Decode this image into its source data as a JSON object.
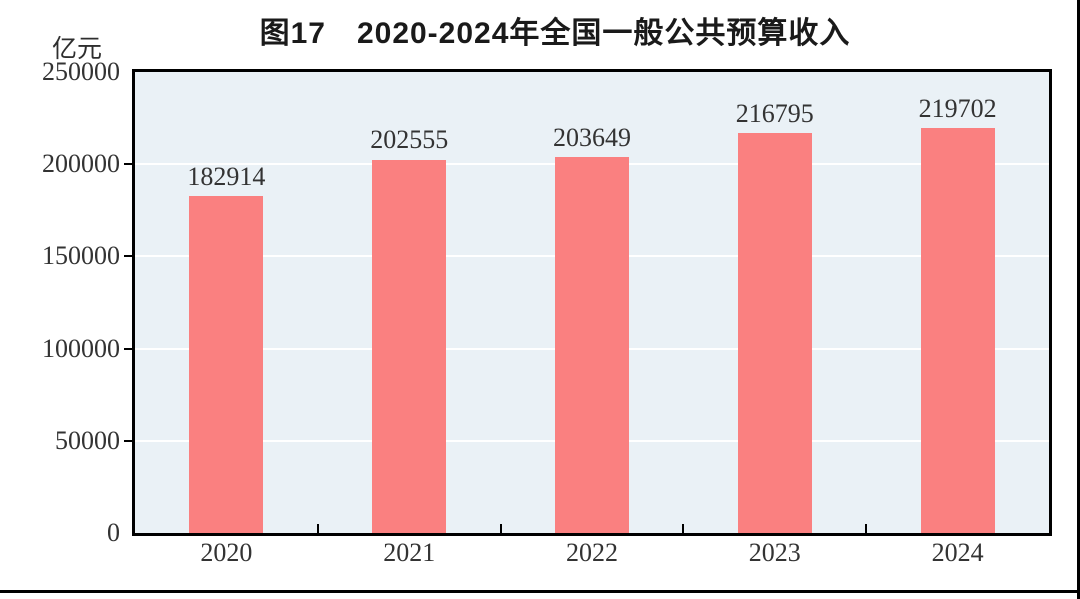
{
  "title": "图17　2020-2024年全国一般公共预算收入",
  "unit_label": "亿元",
  "colors": {
    "bar": "#FA8080",
    "plot_background": "#EAF1F6",
    "gridline": "#FFFFFF",
    "axis_frame": "#000000",
    "label_text": "#333333",
    "title_text": "#1A1A1A"
  },
  "chart_data": {
    "type": "bar",
    "title": "图17　2020-2024年全国一般公共预算收入",
    "categories": [
      "2020",
      "2021",
      "2022",
      "2023",
      "2024"
    ],
    "values": [
      182914,
      202555,
      203649,
      216795,
      219702
    ],
    "data_labels": [
      "182914",
      "202555",
      "203649",
      "216795",
      "219702"
    ],
    "xlabel": "",
    "ylabel": "亿元",
    "ylim": [
      0,
      250000
    ],
    "yticks": [
      0,
      50000,
      100000,
      150000,
      200000,
      250000
    ],
    "gridline_levels": [
      50000,
      100000,
      150000,
      200000
    ],
    "grid": true,
    "legend": false,
    "bar_color": "#FA8080"
  }
}
